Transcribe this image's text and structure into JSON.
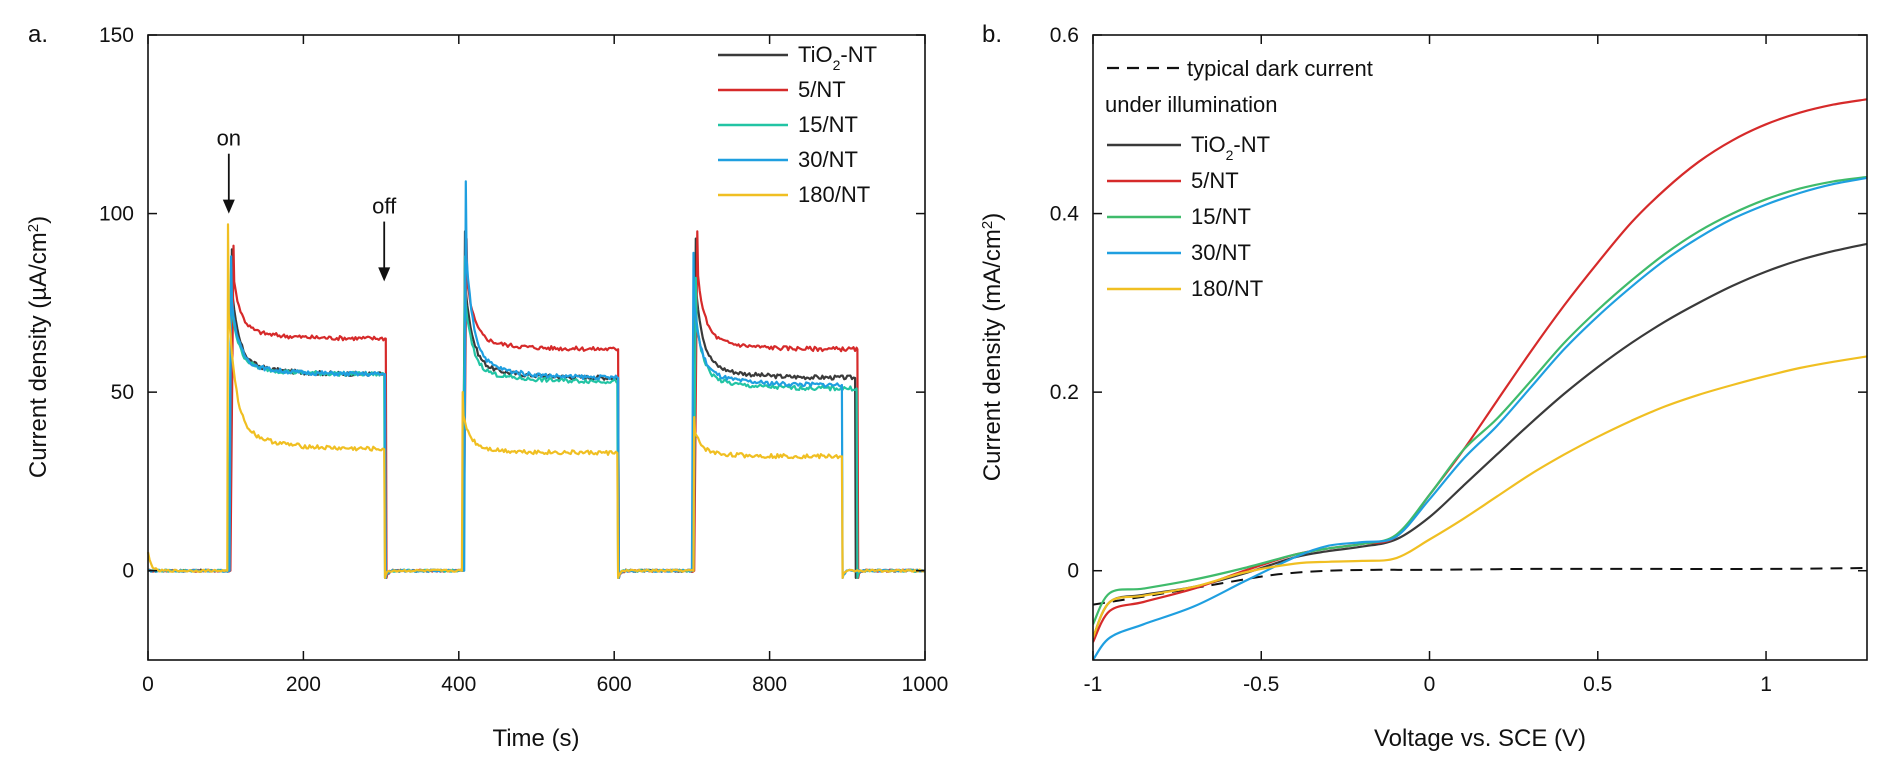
{
  "chart_data": [
    {
      "panel": "a.",
      "type": "line",
      "xlabel": "Time (s)",
      "ylabel_main": "Current density (µA/cm",
      "ylabel_sup": "2",
      "ylabel_tail": ")",
      "xlim": [
        0,
        1000
      ],
      "ylim": [
        -25,
        150
      ],
      "xticks": [
        0,
        200,
        400,
        600,
        800,
        1000
      ],
      "yticks": [
        0,
        50,
        100,
        150
      ],
      "grid": false,
      "legend_position": "top-right",
      "annotations": [
        {
          "text": "on",
          "x": 104,
          "y_tip": 100,
          "y_text": 119
        },
        {
          "text": "off",
          "x": 304,
          "y_tip": 81,
          "y_text": 100
        }
      ],
      "series": [
        {
          "name": "TiO",
          "sub": "2",
          "tail": "-NT",
          "color": "#3a3a3a",
          "light_on": [
            105,
            405,
            702
          ],
          "light_off": [
            305,
            605,
            910
          ],
          "baseline": 0,
          "peaks": [
            90,
            95,
            93
          ],
          "plateaus": [
            55,
            54,
            54
          ],
          "peak_lag": 3
        },
        {
          "name": "5/NT",
          "sub": "",
          "tail": "",
          "color": "#d62a2a",
          "light_on": [
            106,
            406,
            703
          ],
          "light_off": [
            306,
            605,
            913
          ],
          "baseline": 0,
          "peaks": [
            91,
            93,
            95
          ],
          "plateaus": [
            65,
            62,
            62
          ],
          "peak_lag": 4
        },
        {
          "name": "15/NT",
          "sub": "",
          "tail": "",
          "color": "#22c4a4",
          "light_on": [
            104,
            405,
            702
          ],
          "light_off": [
            304,
            604,
            912
          ],
          "baseline": 0,
          "peaks": [
            85,
            88,
            82
          ],
          "plateaus": [
            55,
            53,
            51
          ],
          "peak_lag": 3
        },
        {
          "name": "30/NT",
          "sub": "",
          "tail": "",
          "color": "#1f9fe0",
          "light_on": [
            105,
            407,
            700
          ],
          "light_off": [
            305,
            605,
            893
          ],
          "baseline": 0,
          "peaks": [
            88,
            109,
            89
          ],
          "plateaus": [
            55,
            54,
            52
          ],
          "peak_lag": 2
        },
        {
          "name": "180/NT",
          "sub": "",
          "tail": "",
          "color": "#f0bf22",
          "light_on": [
            102,
            404,
            702
          ],
          "light_off": [
            304,
            604,
            893
          ],
          "baseline": 0,
          "peaks": [
            97,
            50,
            43
          ],
          "plateaus": [
            34,
            33,
            32
          ],
          "peak_lag": 1
        }
      ]
    },
    {
      "panel": "b.",
      "type": "line",
      "xlabel": "Voltage vs. SCE (V)",
      "ylabel_main": "Current density (mA/cm",
      "ylabel_sup": "2",
      "ylabel_tail": ")",
      "xlim": [
        -1.0,
        1.3
      ],
      "ylim": [
        -0.1,
        0.6
      ],
      "xticks": [
        -1,
        -0.5,
        0,
        0.5,
        1
      ],
      "xtick_labels": [
        "-1",
        "-0.5",
        "0",
        "0.5",
        "1"
      ],
      "yticks": [
        0,
        0.2,
        0.4,
        0.6
      ],
      "ytick_labels": [
        "0",
        "0.2",
        "0.4",
        "0.6"
      ],
      "grid": false,
      "legend_position": "top-left",
      "legend_header": "under illumination",
      "dark_current": {
        "name": "typical dark current",
        "color": "#111111",
        "x": [
          -1.0,
          -0.8,
          -0.6,
          -0.45,
          -0.3,
          -0.15,
          0.0,
          0.3,
          0.6,
          1.0,
          1.3
        ],
        "y": [
          -0.038,
          -0.026,
          -0.013,
          -0.004,
          0.0,
          0.001,
          0.001,
          0.002,
          0.002,
          0.002,
          0.003
        ]
      },
      "series": [
        {
          "name": "TiO",
          "sub": "2",
          "tail": "-NT",
          "color": "#3a3a3a",
          "x": [
            -1.0,
            -0.95,
            -0.85,
            -0.7,
            -0.55,
            -0.4,
            -0.3,
            -0.2,
            -0.1,
            0.0,
            0.1,
            0.2,
            0.3,
            0.4,
            0.5,
            0.6,
            0.7,
            0.8,
            0.9,
            1.0,
            1.1,
            1.2,
            1.3
          ],
          "y": [
            -0.075,
            -0.035,
            -0.027,
            -0.018,
            -0.003,
            0.015,
            0.022,
            0.027,
            0.035,
            0.06,
            0.095,
            0.13,
            0.165,
            0.198,
            0.228,
            0.255,
            0.279,
            0.3,
            0.319,
            0.335,
            0.348,
            0.358,
            0.366
          ]
        },
        {
          "name": "5/NT",
          "sub": "",
          "tail": "",
          "color": "#d62a2a",
          "x": [
            -1.0,
            -0.95,
            -0.85,
            -0.7,
            -0.55,
            -0.4,
            -0.3,
            -0.2,
            -0.1,
            0.0,
            0.1,
            0.2,
            0.3,
            0.4,
            0.5,
            0.6,
            0.7,
            0.8,
            0.9,
            1.0,
            1.1,
            1.2,
            1.3
          ],
          "y": [
            -0.08,
            -0.045,
            -0.035,
            -0.02,
            0.0,
            0.018,
            0.025,
            0.03,
            0.038,
            0.085,
            0.135,
            0.19,
            0.245,
            0.297,
            0.345,
            0.39,
            0.427,
            0.458,
            0.482,
            0.5,
            0.513,
            0.522,
            0.528
          ]
        },
        {
          "name": "15/NT",
          "sub": "",
          "tail": "",
          "color": "#3fbb6b",
          "x": [
            -1.0,
            -0.95,
            -0.85,
            -0.7,
            -0.55,
            -0.4,
            -0.3,
            -0.2,
            -0.1,
            0.0,
            0.1,
            0.2,
            0.3,
            0.4,
            0.5,
            0.6,
            0.7,
            0.8,
            0.9,
            1.0,
            1.1,
            1.2,
            1.3
          ],
          "y": [
            -0.06,
            -0.025,
            -0.02,
            -0.01,
            0.003,
            0.018,
            0.025,
            0.03,
            0.04,
            0.085,
            0.135,
            0.17,
            0.212,
            0.255,
            0.292,
            0.325,
            0.355,
            0.38,
            0.4,
            0.416,
            0.428,
            0.436,
            0.441
          ]
        },
        {
          "name": "30/NT",
          "sub": "",
          "tail": "",
          "color": "#1f9fe0",
          "x": [
            -1.0,
            -0.95,
            -0.85,
            -0.7,
            -0.55,
            -0.4,
            -0.3,
            -0.2,
            -0.1,
            0.0,
            0.1,
            0.2,
            0.3,
            0.4,
            0.5,
            0.6,
            0.7,
            0.8,
            0.9,
            1.0,
            1.1,
            1.2,
            1.3
          ],
          "y": [
            -0.1,
            -0.075,
            -0.06,
            -0.04,
            -0.012,
            0.015,
            0.028,
            0.032,
            0.038,
            0.08,
            0.125,
            0.162,
            0.205,
            0.248,
            0.285,
            0.318,
            0.348,
            0.373,
            0.394,
            0.41,
            0.423,
            0.433,
            0.44
          ]
        },
        {
          "name": "180/NT",
          "sub": "",
          "tail": "",
          "color": "#f0bf22",
          "x": [
            -1.0,
            -0.95,
            -0.85,
            -0.7,
            -0.55,
            -0.4,
            -0.3,
            -0.2,
            -0.1,
            0.0,
            0.1,
            0.2,
            0.3,
            0.4,
            0.5,
            0.6,
            0.7,
            0.8,
            0.9,
            1.0,
            1.1,
            1.2,
            1.3
          ],
          "y": [
            -0.075,
            -0.035,
            -0.028,
            -0.018,
            -0.002,
            0.008,
            0.01,
            0.011,
            0.014,
            0.035,
            0.058,
            0.083,
            0.108,
            0.13,
            0.15,
            0.168,
            0.184,
            0.197,
            0.208,
            0.218,
            0.227,
            0.234,
            0.24
          ]
        }
      ]
    }
  ]
}
